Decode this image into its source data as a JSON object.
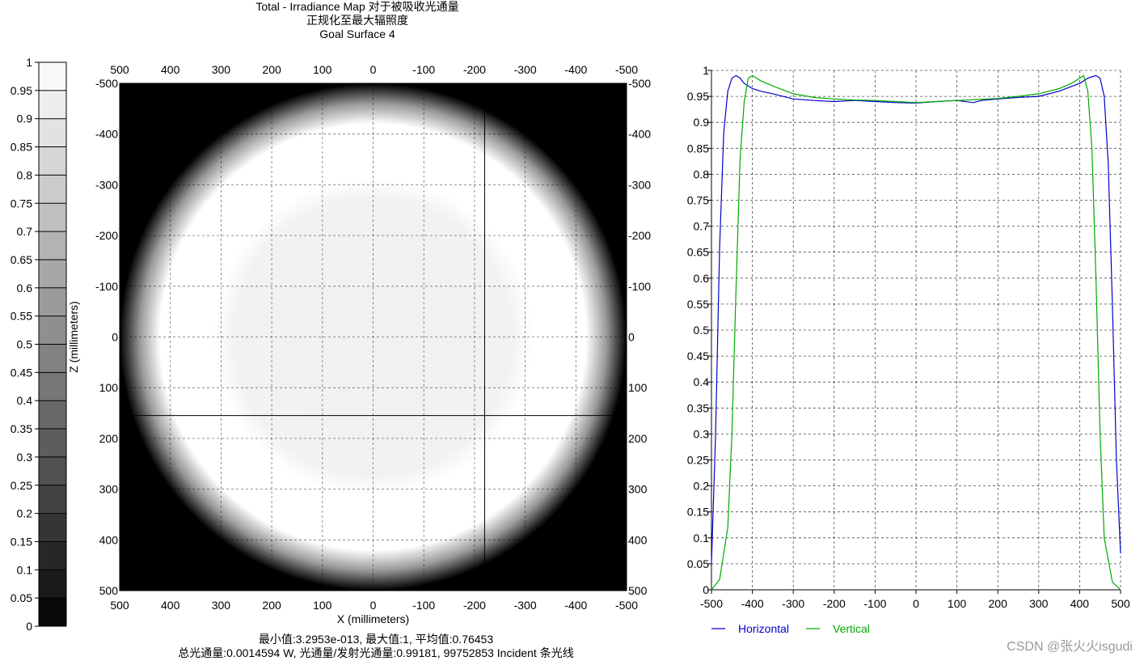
{
  "title": {
    "line1": "Total - Irradiance Map 对于被吸收光通量",
    "line2": "正规化至最大辐照度",
    "line3": "Goal Surface 4"
  },
  "stats": {
    "line1": "最小值:3.2953e-013, 最大值:1, 平均值:0.76453",
    "line2": "总光通量:0.0014594 W, 光通量/发射光通量:0.99181, 99752853 Incident 条光线"
  },
  "watermark": "CSDN @张火火isgudi",
  "colors": {
    "horizontal": "#0000cc",
    "vertical": "#00aa00",
    "background": "#ffffff",
    "map_outside": "#000000",
    "grid": "#000000"
  },
  "chart_data": [
    {
      "type": "heatmap",
      "name": "colorbar",
      "range": [
        0,
        1
      ],
      "ticks": [
        "0",
        "0.05",
        "0.1",
        "0.15",
        "0.2",
        "0.25",
        "0.3",
        "0.35",
        "0.4",
        "0.45",
        "0.5",
        "0.55",
        "0.6",
        "0.65",
        "0.7",
        "0.75",
        "0.8",
        "0.85",
        "0.9",
        "0.95",
        "1"
      ],
      "levels": 20
    },
    {
      "type": "heatmap",
      "name": "irradiance-map",
      "xlabel": "X (millimeters)",
      "ylabel": "Z (millimeters)",
      "xlim": [
        500,
        -500
      ],
      "ylim": [
        -500,
        500
      ],
      "x_ticks": [
        "500",
        "400",
        "300",
        "200",
        "100",
        "0",
        "-100",
        "-200",
        "-300",
        "-400",
        "-500"
      ],
      "y_ticks": [
        "-500",
        "-400",
        "-300",
        "-200",
        "-100",
        "0",
        "100",
        "200",
        "300",
        "400",
        "500"
      ],
      "spot_radius": 500,
      "edge_falloff_start": 420,
      "plateau_level": 0.95,
      "rim_level": 1.0,
      "crosshair": {
        "x": -220,
        "z": 155
      }
    },
    {
      "type": "line",
      "name": "profiles",
      "xlim": [
        -500,
        500
      ],
      "ylim": [
        0,
        1
      ],
      "x_ticks": [
        "-500",
        "-400",
        "-300",
        "-200",
        "-100",
        "0",
        "100",
        "200",
        "300",
        "400",
        "500"
      ],
      "y_ticks": [
        "0",
        "0.05",
        "0.1",
        "0.15",
        "0.2",
        "0.25",
        "0.3",
        "0.35",
        "0.4",
        "0.45",
        "0.5",
        "0.55",
        "0.6",
        "0.65",
        "0.7",
        "0.75",
        "0.8",
        "0.85",
        "0.9",
        "0.95",
        "1"
      ],
      "series": [
        {
          "name": "Horizontal",
          "x": [
            -500,
            -490,
            -480,
            -470,
            -460,
            -450,
            -440,
            -430,
            -420,
            -400,
            -380,
            -350,
            -300,
            -250,
            -200,
            -150,
            -100,
            -50,
            0,
            50,
            100,
            140,
            160,
            200,
            250,
            300,
            350,
            400,
            420,
            440,
            450,
            460,
            470,
            480,
            490,
            500
          ],
          "y": [
            0.05,
            0.3,
            0.66,
            0.88,
            0.96,
            0.985,
            0.99,
            0.985,
            0.975,
            0.965,
            0.96,
            0.955,
            0.945,
            0.942,
            0.94,
            0.942,
            0.94,
            0.938,
            0.937,
            0.94,
            0.942,
            0.938,
            0.942,
            0.945,
            0.948,
            0.95,
            0.96,
            0.975,
            0.985,
            0.99,
            0.985,
            0.95,
            0.82,
            0.55,
            0.25,
            0.07
          ]
        },
        {
          "name": "Vertical",
          "x": [
            -500,
            -480,
            -460,
            -450,
            -440,
            -430,
            -420,
            -410,
            -400,
            -380,
            -350,
            -300,
            -250,
            -200,
            -150,
            -100,
            -50,
            0,
            50,
            100,
            150,
            200,
            250,
            300,
            350,
            380,
            400,
            410,
            420,
            430,
            440,
            450,
            460,
            480,
            500
          ],
          "y": [
            0.0,
            0.02,
            0.12,
            0.3,
            0.58,
            0.83,
            0.94,
            0.985,
            0.99,
            0.98,
            0.97,
            0.955,
            0.948,
            0.945,
            0.943,
            0.942,
            0.94,
            0.938,
            0.94,
            0.942,
            0.944,
            0.946,
            0.95,
            0.955,
            0.965,
            0.975,
            0.985,
            0.99,
            0.96,
            0.85,
            0.6,
            0.3,
            0.1,
            0.015,
            0.0
          ]
        }
      ],
      "legend": "bottom-left",
      "grid": true
    }
  ]
}
